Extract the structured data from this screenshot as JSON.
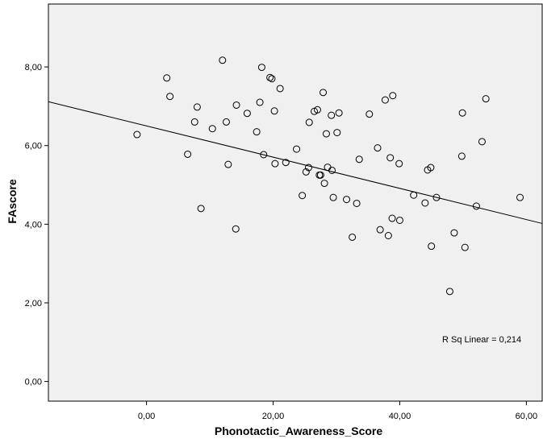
{
  "chart_data": {
    "type": "scatter",
    "title": "",
    "xlabel": "Phonotactic_Awareness_Score",
    "ylabel": "FAscore",
    "xlim": [
      -15.5,
      62.5
    ],
    "ylim": [
      -0.5,
      9.6
    ],
    "x_ticks": [
      0,
      20,
      40,
      60
    ],
    "y_ticks": [
      0,
      2,
      4,
      6,
      8
    ],
    "x_tick_labels": [
      "0,00",
      "20,00",
      "40,00",
      "60,00"
    ],
    "y_tick_labels": [
      "0,00",
      "2,00",
      "4,00",
      "6,00",
      "8,00"
    ],
    "grid": false,
    "legend": "none",
    "background_color": "#f0f0f0",
    "marker_color": "#000000",
    "fit_line": {
      "intercept": 6.5,
      "slope": -0.0397,
      "x_range": [
        -15.5,
        62.5
      ]
    },
    "annotation": "R Sq Linear = 0,214",
    "points": [
      {
        "x": -1.5,
        "y": 6.28
      },
      {
        "x": 3.2,
        "y": 7.72
      },
      {
        "x": 3.7,
        "y": 7.25
      },
      {
        "x": 6.5,
        "y": 5.78
      },
      {
        "x": 7.6,
        "y": 6.6
      },
      {
        "x": 8.0,
        "y": 6.98
      },
      {
        "x": 8.6,
        "y": 4.4
      },
      {
        "x": 10.4,
        "y": 6.43
      },
      {
        "x": 12.0,
        "y": 8.17
      },
      {
        "x": 12.6,
        "y": 6.6
      },
      {
        "x": 12.9,
        "y": 5.52
      },
      {
        "x": 14.1,
        "y": 3.88
      },
      {
        "x": 14.2,
        "y": 7.03
      },
      {
        "x": 15.9,
        "y": 6.82
      },
      {
        "x": 17.4,
        "y": 6.35
      },
      {
        "x": 17.9,
        "y": 7.1
      },
      {
        "x": 18.2,
        "y": 7.99
      },
      {
        "x": 18.5,
        "y": 5.77
      },
      {
        "x": 19.5,
        "y": 7.73
      },
      {
        "x": 19.8,
        "y": 7.7
      },
      {
        "x": 20.2,
        "y": 6.88
      },
      {
        "x": 20.3,
        "y": 5.54
      },
      {
        "x": 21.1,
        "y": 7.45
      },
      {
        "x": 22.0,
        "y": 5.57
      },
      {
        "x": 23.7,
        "y": 5.91
      },
      {
        "x": 24.6,
        "y": 4.73
      },
      {
        "x": 25.2,
        "y": 5.33
      },
      {
        "x": 25.6,
        "y": 5.44
      },
      {
        "x": 25.7,
        "y": 6.59
      },
      {
        "x": 26.5,
        "y": 6.87
      },
      {
        "x": 27.0,
        "y": 6.91
      },
      {
        "x": 27.3,
        "y": 5.25
      },
      {
        "x": 27.5,
        "y": 5.25
      },
      {
        "x": 27.9,
        "y": 7.35
      },
      {
        "x": 28.1,
        "y": 5.04
      },
      {
        "x": 28.4,
        "y": 6.3
      },
      {
        "x": 28.6,
        "y": 5.45
      },
      {
        "x": 29.2,
        "y": 6.77
      },
      {
        "x": 29.3,
        "y": 5.37
      },
      {
        "x": 29.5,
        "y": 4.68
      },
      {
        "x": 30.1,
        "y": 6.33
      },
      {
        "x": 30.4,
        "y": 6.83
      },
      {
        "x": 31.6,
        "y": 4.63
      },
      {
        "x": 32.5,
        "y": 3.67
      },
      {
        "x": 33.2,
        "y": 4.53
      },
      {
        "x": 33.6,
        "y": 5.65
      },
      {
        "x": 35.2,
        "y": 6.8
      },
      {
        "x": 36.5,
        "y": 5.94
      },
      {
        "x": 36.9,
        "y": 3.86
      },
      {
        "x": 37.7,
        "y": 7.16
      },
      {
        "x": 38.2,
        "y": 3.71
      },
      {
        "x": 38.5,
        "y": 5.69
      },
      {
        "x": 38.8,
        "y": 4.15
      },
      {
        "x": 38.9,
        "y": 7.27
      },
      {
        "x": 39.9,
        "y": 5.54
      },
      {
        "x": 40.0,
        "y": 4.1
      },
      {
        "x": 42.2,
        "y": 4.74
      },
      {
        "x": 44.0,
        "y": 4.54
      },
      {
        "x": 44.4,
        "y": 5.38
      },
      {
        "x": 44.9,
        "y": 5.44
      },
      {
        "x": 45.0,
        "y": 3.44
      },
      {
        "x": 45.8,
        "y": 4.68
      },
      {
        "x": 47.9,
        "y": 2.29
      },
      {
        "x": 48.6,
        "y": 3.78
      },
      {
        "x": 49.8,
        "y": 5.73
      },
      {
        "x": 49.9,
        "y": 6.83
      },
      {
        "x": 50.3,
        "y": 3.41
      },
      {
        "x": 52.1,
        "y": 4.46
      },
      {
        "x": 53.0,
        "y": 6.1
      },
      {
        "x": 53.6,
        "y": 7.19
      },
      {
        "x": 59.0,
        "y": 4.68
      }
    ]
  }
}
